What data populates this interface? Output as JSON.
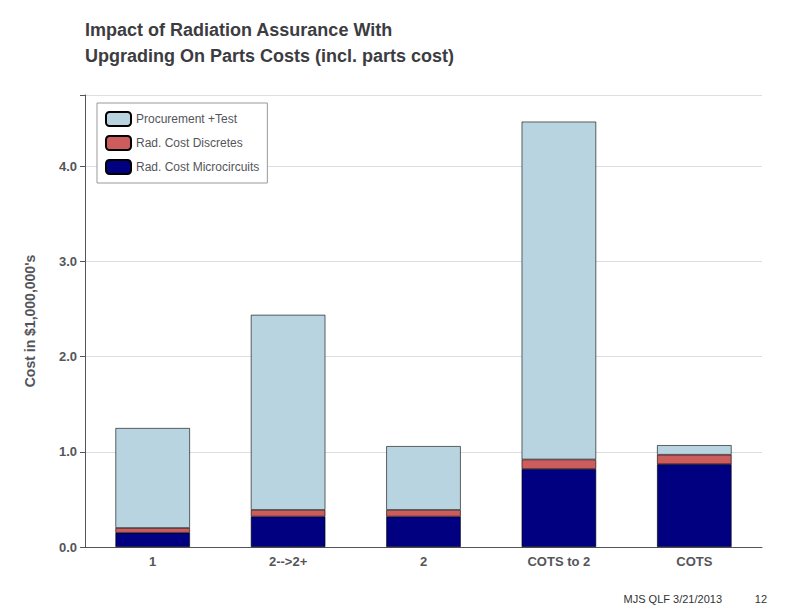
{
  "chart_data": {
    "type": "bar",
    "stacked": true,
    "title": "Impact of Radiation Assurance With\nUpgrading On Parts Costs (incl. parts cost)",
    "ylabel": "Cost in $1,000,000's",
    "categories": [
      "1",
      "2-->2+",
      "2",
      "COTS to 2",
      "COTS"
    ],
    "series": [
      {
        "name": "Rad. Cost Microcircuits",
        "color": "#000080",
        "values": [
          0.15,
          0.32,
          0.32,
          0.82,
          0.87
        ]
      },
      {
        "name": "Rad. Cost Discretes",
        "color": "#cd5c5c",
        "values": [
          0.05,
          0.07,
          0.07,
          0.1,
          0.1
        ]
      },
      {
        "name": "Procurement +Test",
        "color": "#b8d4e0",
        "values": [
          1.05,
          2.05,
          0.67,
          3.55,
          0.1
        ]
      }
    ],
    "ylim": [
      0,
      4.75
    ],
    "yticks": [
      {
        "value": 0,
        "label": "0.0"
      },
      {
        "value": 1,
        "label": "1.0"
      },
      {
        "value": 2,
        "label": "2.0"
      },
      {
        "value": 3,
        "label": "3.0"
      },
      {
        "value": 4,
        "label": "4.0"
      }
    ],
    "grid": true,
    "legend": "upper left",
    "annotations": [
      "MJS QLF 3/21/2013",
      "12"
    ]
  }
}
